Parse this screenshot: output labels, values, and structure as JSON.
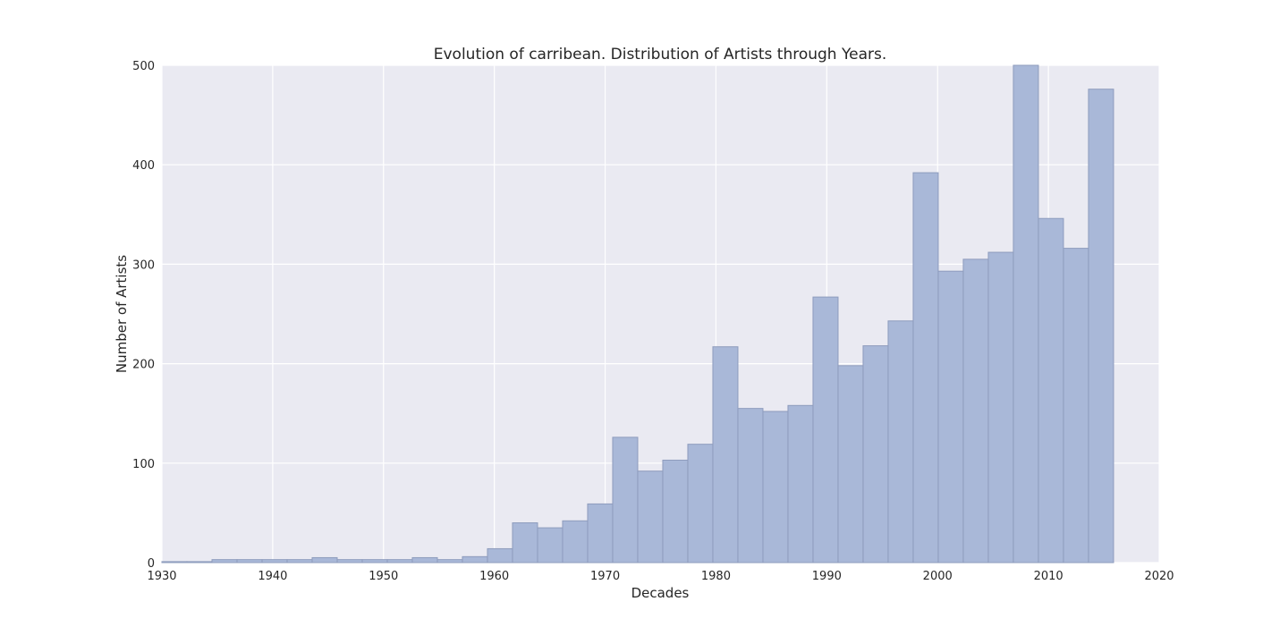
{
  "chart_data": {
    "type": "bar",
    "title": "Evolution of carribean. Distribution of Artists through Years.",
    "xlabel": "Decades",
    "ylabel": "Number of Artists",
    "xlim": [
      1930,
      2020
    ],
    "ylim": [
      0,
      500
    ],
    "xticks": [
      1930,
      1940,
      1950,
      1960,
      1970,
      1980,
      1990,
      2000,
      2010,
      2020
    ],
    "yticks": [
      0,
      100,
      200,
      300,
      400,
      500
    ],
    "grid": true,
    "colors": {
      "bar_fill": "#a9b8d8",
      "bar_stroke": "#8e9cbd",
      "plot_bg": "#eaeaf2"
    },
    "bins": [
      {
        "x0": 1930.0,
        "x1": 1932.26,
        "value": 1
      },
      {
        "x0": 1932.26,
        "x1": 1934.52,
        "value": 1
      },
      {
        "x0": 1934.52,
        "x1": 1936.78,
        "value": 3
      },
      {
        "x0": 1936.78,
        "x1": 1939.04,
        "value": 3
      },
      {
        "x0": 1939.04,
        "x1": 1941.3,
        "value": 3
      },
      {
        "x0": 1941.3,
        "x1": 1943.56,
        "value": 3
      },
      {
        "x0": 1943.56,
        "x1": 1945.82,
        "value": 5
      },
      {
        "x0": 1945.82,
        "x1": 1948.08,
        "value": 3
      },
      {
        "x0": 1948.08,
        "x1": 1950.34,
        "value": 3
      },
      {
        "x0": 1950.34,
        "x1": 1952.6,
        "value": 3
      },
      {
        "x0": 1952.6,
        "x1": 1954.86,
        "value": 5
      },
      {
        "x0": 1954.86,
        "x1": 1957.12,
        "value": 3
      },
      {
        "x0": 1957.12,
        "x1": 1959.38,
        "value": 6
      },
      {
        "x0": 1959.38,
        "x1": 1961.64,
        "value": 14
      },
      {
        "x0": 1961.64,
        "x1": 1963.9,
        "value": 40
      },
      {
        "x0": 1963.9,
        "x1": 1966.16,
        "value": 35
      },
      {
        "x0": 1966.16,
        "x1": 1968.42,
        "value": 42
      },
      {
        "x0": 1968.42,
        "x1": 1970.68,
        "value": 59
      },
      {
        "x0": 1970.68,
        "x1": 1972.94,
        "value": 126
      },
      {
        "x0": 1972.94,
        "x1": 1975.2,
        "value": 92
      },
      {
        "x0": 1975.2,
        "x1": 1977.46,
        "value": 103
      },
      {
        "x0": 1977.46,
        "x1": 1979.72,
        "value": 119
      },
      {
        "x0": 1979.72,
        "x1": 1981.98,
        "value": 217
      },
      {
        "x0": 1981.98,
        "x1": 1984.24,
        "value": 155
      },
      {
        "x0": 1984.24,
        "x1": 1986.5,
        "value": 152
      },
      {
        "x0": 1986.5,
        "x1": 1988.76,
        "value": 158
      },
      {
        "x0": 1988.76,
        "x1": 1991.02,
        "value": 267
      },
      {
        "x0": 1991.02,
        "x1": 1993.28,
        "value": 198
      },
      {
        "x0": 1993.28,
        "x1": 1995.54,
        "value": 218
      },
      {
        "x0": 1995.54,
        "x1": 1997.8,
        "value": 243
      },
      {
        "x0": 1997.8,
        "x1": 2000.06,
        "value": 392
      },
      {
        "x0": 2000.06,
        "x1": 2002.32,
        "value": 293
      },
      {
        "x0": 2002.32,
        "x1": 2004.58,
        "value": 305
      },
      {
        "x0": 2004.58,
        "x1": 2006.84,
        "value": 312
      },
      {
        "x0": 2006.84,
        "x1": 2009.1,
        "value": 500
      },
      {
        "x0": 2009.1,
        "x1": 2011.36,
        "value": 346
      },
      {
        "x0": 2011.36,
        "x1": 2013.62,
        "value": 316
      },
      {
        "x0": 2013.62,
        "x1": 2015.88,
        "value": 476
      }
    ]
  }
}
